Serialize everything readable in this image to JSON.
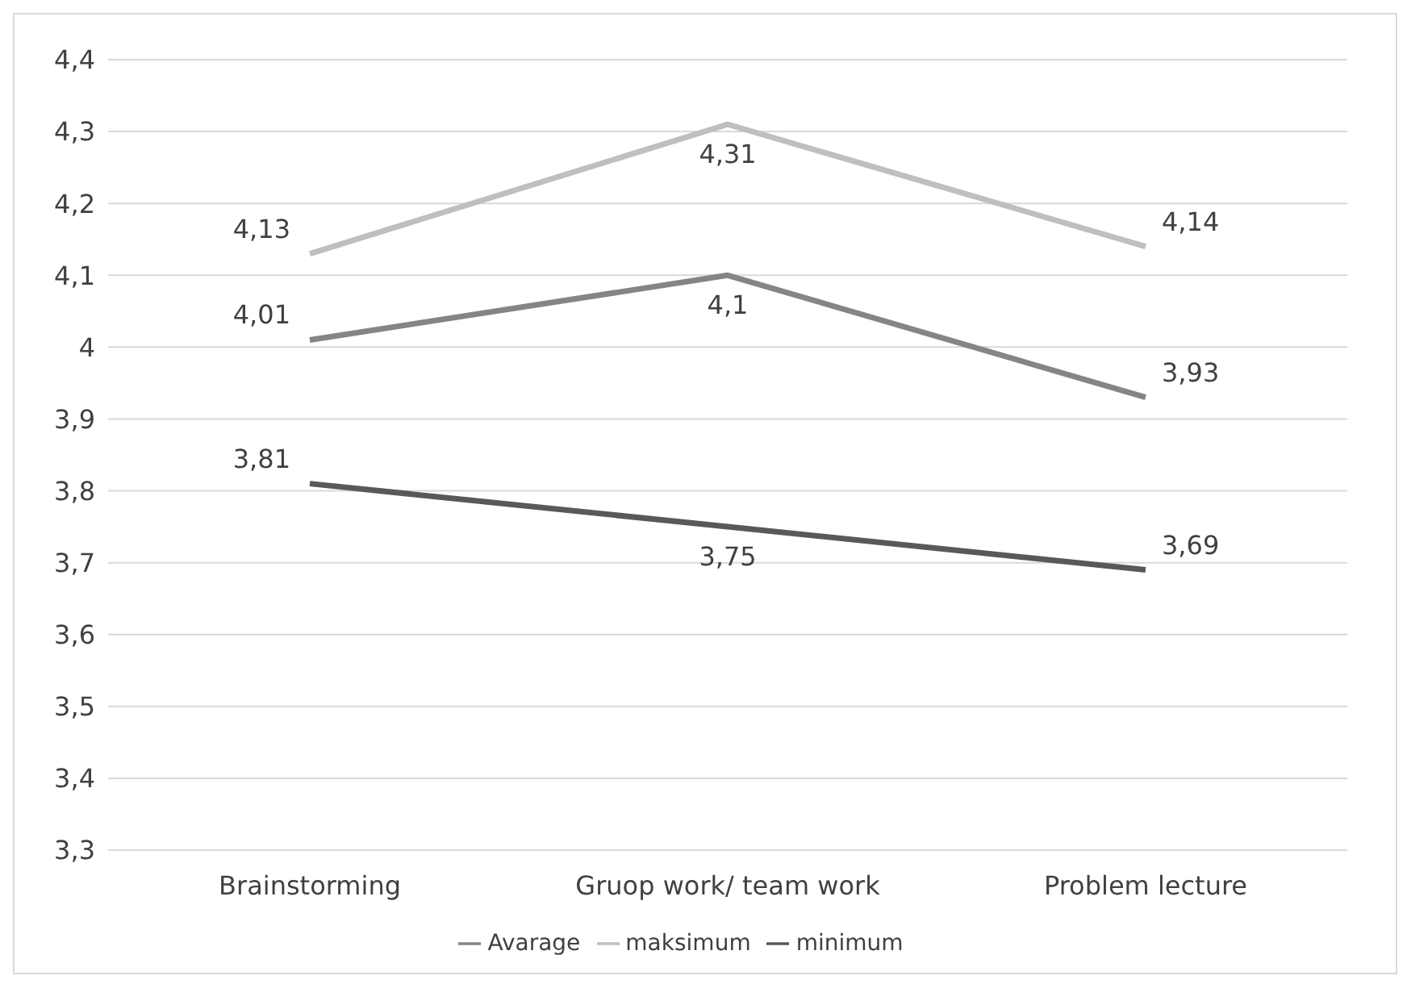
{
  "chart_data": {
    "type": "line",
    "categories": [
      "Brainstorming",
      "Gruop work/ team work",
      "Problem lecture"
    ],
    "series": [
      {
        "name": "minimum",
        "color": "#595959",
        "values": [
          3.81,
          3.75,
          3.69
        ],
        "value_labels": [
          "3,81",
          "3,75",
          "3,69"
        ]
      },
      {
        "name": "maksimum",
        "color": "#bfbfbf",
        "values": [
          4.13,
          4.31,
          4.14
        ],
        "value_labels": [
          "4,13",
          "4,31",
          "4,14"
        ]
      },
      {
        "name": "Avarage",
        "color": "#858585",
        "values": [
          4.01,
          4.1,
          3.93
        ],
        "value_labels": [
          "4,01",
          "4,1",
          "3,93"
        ]
      }
    ],
    "ylim": [
      3.3,
      4.4
    ],
    "yticks": [
      {
        "value": 3.3,
        "label": "3,3"
      },
      {
        "value": 3.4,
        "label": "3,4"
      },
      {
        "value": 3.5,
        "label": "3,5"
      },
      {
        "value": 3.6,
        "label": "3,6"
      },
      {
        "value": 3.7,
        "label": "3,7"
      },
      {
        "value": 3.8,
        "label": "3,8"
      },
      {
        "value": 3.9,
        "label": "3,9"
      },
      {
        "value": 4,
        "label": "4"
      },
      {
        "value": 4.1,
        "label": "4,1"
      },
      {
        "value": 4.2,
        "label": "4,2"
      },
      {
        "value": 4.3,
        "label": "4,3"
      },
      {
        "value": 4.4,
        "label": "4,4"
      }
    ],
    "grid": "y",
    "legend": "bottom",
    "marker": "none",
    "line_style": "solid"
  }
}
